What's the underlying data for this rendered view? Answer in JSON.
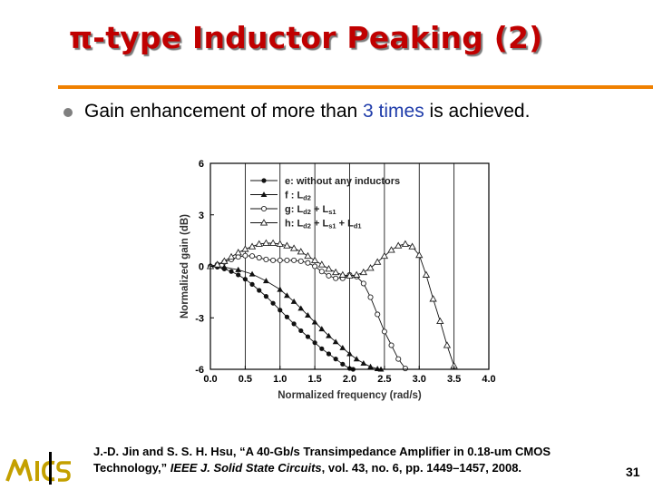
{
  "title": "π-type Inductor Peaking (2)",
  "bullet": {
    "prefix": "Gain enhancement of more than ",
    "highlight": "3 times",
    "suffix": " is achieved."
  },
  "chart_data": {
    "type": "line",
    "xlabel": "Normalized frequency (rad/s)",
    "ylabel": "Normalized gain (dB)",
    "xlim": [
      0,
      4.0
    ],
    "ylim": [
      -6,
      6
    ],
    "x_ticks": [
      "0.0",
      "0.5",
      "1.0",
      "1.5",
      "2.0",
      "2.5",
      "3.0",
      "3.5",
      "4.0"
    ],
    "y_ticks": [
      "6",
      "3",
      "0",
      "-3",
      "-6"
    ],
    "grid": "vertical",
    "legend_position": "top",
    "series": [
      {
        "name": "e: without any inductors",
        "legend": {
          "main": "e: without any inductors",
          "sub1": "",
          "mid": "",
          "sub2": "",
          "end": "",
          "sub3": ""
        },
        "marker": "filled-circle",
        "x": [
          0.0,
          0.1,
          0.2,
          0.3,
          0.4,
          0.5,
          0.6,
          0.7,
          0.8,
          0.9,
          1.0,
          1.1,
          1.2,
          1.3,
          1.4,
          1.5,
          1.6,
          1.7,
          1.8,
          1.9,
          2.0,
          2.05
        ],
        "y": [
          0.0,
          -0.05,
          -0.15,
          -0.3,
          -0.5,
          -0.75,
          -1.05,
          -1.4,
          -1.75,
          -2.15,
          -2.55,
          -2.95,
          -3.35,
          -3.75,
          -4.1,
          -4.45,
          -4.8,
          -5.1,
          -5.4,
          -5.7,
          -5.95,
          -6.0
        ]
      },
      {
        "name": "f : Ld2",
        "legend": {
          "main": "f : L",
          "sub1": "d2",
          "mid": "",
          "sub2": "",
          "end": "",
          "sub3": ""
        },
        "marker": "filled-triangle",
        "x": [
          0.0,
          0.2,
          0.4,
          0.6,
          0.8,
          1.0,
          1.1,
          1.2,
          1.3,
          1.4,
          1.5,
          1.6,
          1.7,
          1.8,
          1.9,
          2.0,
          2.1,
          2.2,
          2.3,
          2.4,
          2.45
        ],
        "y": [
          0.0,
          -0.05,
          -0.2,
          -0.45,
          -0.85,
          -1.35,
          -1.7,
          -2.05,
          -2.45,
          -2.85,
          -3.25,
          -3.65,
          -4.05,
          -4.4,
          -4.75,
          -5.1,
          -5.4,
          -5.65,
          -5.85,
          -5.97,
          -6.0
        ]
      },
      {
        "name": "g: Ld2 + Ls1",
        "legend": {
          "main": "g: L",
          "sub1": "d2",
          "mid": " + L",
          "sub2": "s1",
          "end": "",
          "sub3": ""
        },
        "marker": "open-circle",
        "x": [
          0.0,
          0.1,
          0.2,
          0.3,
          0.4,
          0.5,
          0.6,
          0.7,
          0.8,
          0.9,
          1.0,
          1.1,
          1.2,
          1.3,
          1.4,
          1.5,
          1.6,
          1.7,
          1.8,
          1.9,
          2.0,
          2.1,
          2.2,
          2.3,
          2.4,
          2.5,
          2.6,
          2.7,
          2.8
        ],
        "y": [
          0.0,
          0.1,
          0.25,
          0.4,
          0.55,
          0.62,
          0.6,
          0.5,
          0.4,
          0.35,
          0.35,
          0.35,
          0.35,
          0.3,
          0.2,
          0.0,
          -0.3,
          -0.55,
          -0.7,
          -0.7,
          -0.5,
          -0.6,
          -1.0,
          -1.8,
          -2.8,
          -3.8,
          -4.6,
          -5.4,
          -5.95
        ]
      },
      {
        "name": "h: Ld2 + Ls1 + Ld1",
        "legend": {
          "main": "h: L",
          "sub1": "d2",
          "mid": " + L",
          "sub2": "s1",
          "end": " + L",
          "sub3": "d1"
        },
        "marker": "open-triangle",
        "x": [
          0.0,
          0.1,
          0.2,
          0.3,
          0.4,
          0.5,
          0.6,
          0.7,
          0.8,
          0.9,
          1.0,
          1.1,
          1.2,
          1.3,
          1.4,
          1.5,
          1.6,
          1.7,
          1.8,
          1.9,
          2.0,
          2.1,
          2.2,
          2.3,
          2.4,
          2.5,
          2.6,
          2.7,
          2.8,
          2.9,
          3.0,
          3.1,
          3.2,
          3.3,
          3.4,
          3.5
        ],
        "y": [
          0.0,
          0.1,
          0.3,
          0.55,
          0.8,
          1.0,
          1.15,
          1.3,
          1.35,
          1.35,
          1.3,
          1.2,
          1.05,
          0.85,
          0.6,
          0.35,
          0.1,
          -0.15,
          -0.35,
          -0.5,
          -0.55,
          -0.5,
          -0.35,
          -0.1,
          0.25,
          0.6,
          0.95,
          1.2,
          1.3,
          1.15,
          0.65,
          -0.5,
          -1.9,
          -3.2,
          -4.6,
          -5.8
        ]
      }
    ]
  },
  "reference": {
    "authors": "J.-D. Jin and S. S. H. Hsu, “A 40-Gb/s Transimpedance Amplifier in 0.18-um CMOS Technology,” ",
    "journal": "IEEE J. Solid State Circuits",
    "details": ", vol. 43, no. 6, pp. 1449–1457, 2008."
  },
  "page_number": "31"
}
